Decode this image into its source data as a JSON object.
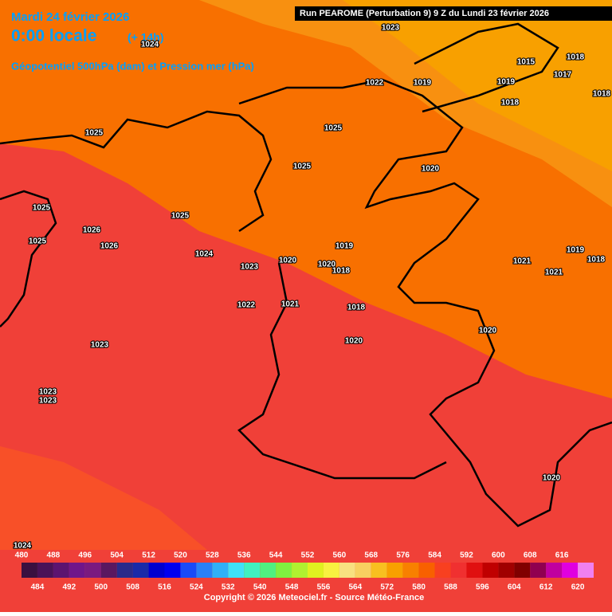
{
  "header": {
    "date": "Mardi 24 février 2026",
    "time": "0:00 locale",
    "lead": "(+ 14h)",
    "field": "Géopotentiel 500hPa (dam) et Pression mer (hPa)",
    "run": "Run PEAROME (Perturbation 9) 9 Z du Lundi 23 février 2026"
  },
  "isobar_labels": [
    1023,
    1024,
    1015,
    1018,
    1022,
    1019,
    1019,
    1017,
    1018,
    1018,
    1025,
    1025,
    1025,
    1020,
    1025,
    1025,
    1026,
    1025,
    1026,
    1024,
    1023,
    1020,
    1020,
    1019,
    1018,
    1021,
    1019,
    1018,
    1021,
    1022,
    1021,
    1018,
    1020,
    1020,
    1023,
    1023,
    1023,
    1020,
    1024
  ],
  "legend": {
    "top_labels": [
      480,
      488,
      496,
      504,
      512,
      520,
      528,
      536,
      544,
      552,
      560,
      568,
      576,
      584,
      592,
      600,
      608,
      616
    ],
    "bottom_labels": [
      484,
      492,
      500,
      508,
      516,
      524,
      532,
      540,
      548,
      556,
      564,
      572,
      580,
      588,
      596,
      604,
      612,
      620
    ],
    "colors": [
      "#3a1040",
      "#4a1258",
      "#5c1470",
      "#70168a",
      "#7a1a80",
      "#5a1860",
      "#2a2a8a",
      "#1a2aa8",
      "#0000d0",
      "#0000f0",
      "#1a4af8",
      "#2a80f8",
      "#30b0f8",
      "#40e0f8",
      "#40f0c0",
      "#50f080",
      "#80f040",
      "#b0f030",
      "#e0f020",
      "#f8f040",
      "#f8e080",
      "#f8d060",
      "#f8c020",
      "#f8a000",
      "#f88000",
      "#f86000",
      "#f84020",
      "#f03030",
      "#e01010",
      "#c00000",
      "#a00000",
      "#800000",
      "#900050",
      "#c000a0",
      "#e000e0",
      "#f080f0"
    ]
  },
  "copyright": "Copyright © 2026 Meteociel.fr - Source Météo-France"
}
